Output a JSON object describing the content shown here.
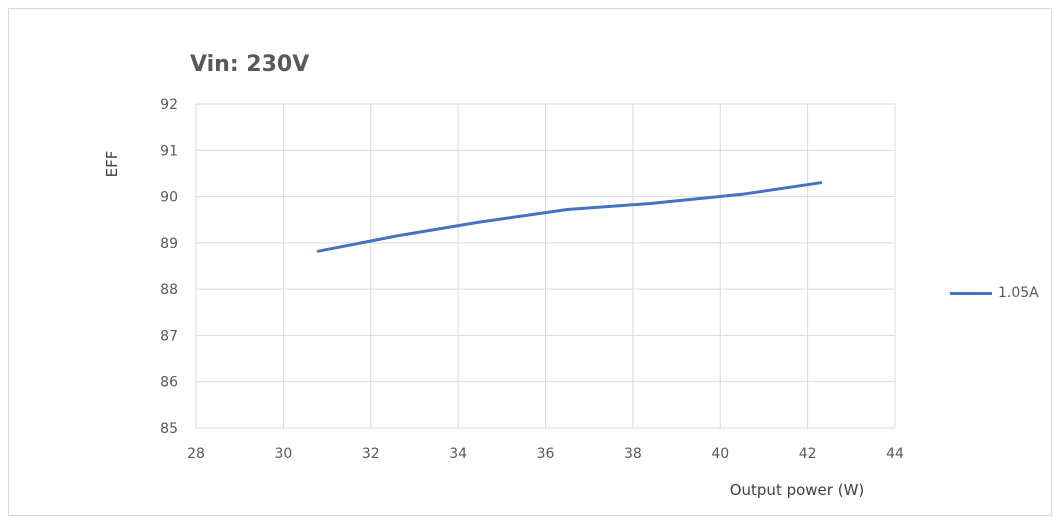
{
  "chart_data": {
    "type": "line",
    "title": "Vin: 230V",
    "xlabel": "Output power (W)",
    "ylabel": "EFF",
    "xlim": [
      28,
      44
    ],
    "ylim": [
      85,
      92
    ],
    "xticks": [
      "28",
      "30",
      "32",
      "34",
      "36",
      "38",
      "40",
      "42",
      "44"
    ],
    "yticks": [
      "85",
      "86",
      "87",
      "88",
      "89",
      "90",
      "91",
      "92"
    ],
    "grid": true,
    "legend_position": "right",
    "series": [
      {
        "name": "1.05A",
        "color": "#4472c4",
        "x": [
          30.8,
          32.6,
          34.5,
          36.5,
          38.4,
          40.5,
          42.3
        ],
        "y": [
          88.82,
          89.15,
          89.45,
          89.72,
          89.85,
          90.05,
          90.3
        ]
      }
    ]
  }
}
